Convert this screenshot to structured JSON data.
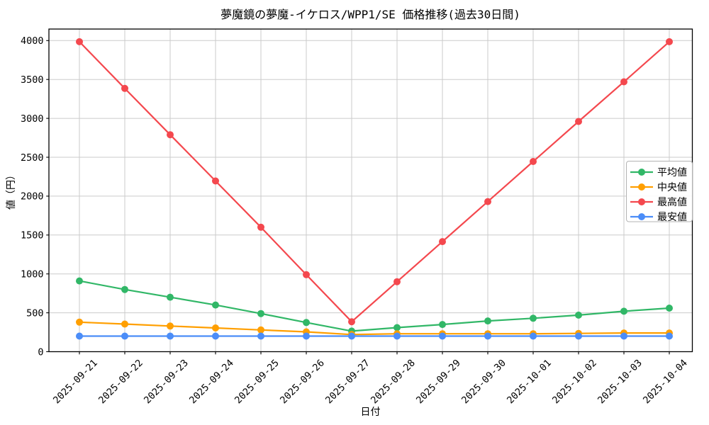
{
  "chart_data": {
    "type": "line",
    "title": "夢魔鏡の夢魔-イケロス/WPP1/SE 価格推移(過去30日間)",
    "xlabel": "日付",
    "ylabel": "値（円）",
    "x": [
      "2025-09-21",
      "2025-09-22",
      "2025-09-23",
      "2025-09-24",
      "2025-09-25",
      "2025-09-26",
      "2025-09-27",
      "2025-09-28",
      "2025-09-29",
      "2025-09-30",
      "2025-10-01",
      "2025-10-02",
      "2025-10-03",
      "2025-10-04"
    ],
    "ylim": [
      0,
      4150
    ],
    "yticks": [
      0,
      500,
      1000,
      1500,
      2000,
      2500,
      3000,
      3500,
      4000
    ],
    "grid": true,
    "legend_position": "center-right",
    "marker": "circle",
    "series": [
      {
        "id": "average",
        "name": "平均値",
        "color": "#31b767",
        "values": [
          910,
          800,
          700,
          600,
          490,
          375,
          265,
          310,
          350,
          395,
          430,
          470,
          520,
          560
        ]
      },
      {
        "id": "median",
        "name": "中央値",
        "color": "#ff9f00",
        "values": [
          380,
          355,
          330,
          305,
          280,
          255,
          220,
          230,
          230,
          230,
          230,
          235,
          240,
          240
        ]
      },
      {
        "id": "max",
        "name": "最高値",
        "color": "#f4484e",
        "values": [
          3985,
          3385,
          2790,
          2195,
          1600,
          990,
          385,
          900,
          1415,
          1930,
          2445,
          2960,
          3470,
          3985
        ]
      },
      {
        "id": "min",
        "name": "最安値",
        "color": "#4b8df8",
        "values": [
          200,
          200,
          200,
          200,
          200,
          200,
          200,
          200,
          200,
          200,
          200,
          200,
          200,
          200
        ]
      }
    ],
    "colors": {
      "grid": "#cbcbcb",
      "spine": "#000000",
      "legend_border": "#b3b3b3",
      "legend_background": "#ffffff"
    }
  }
}
